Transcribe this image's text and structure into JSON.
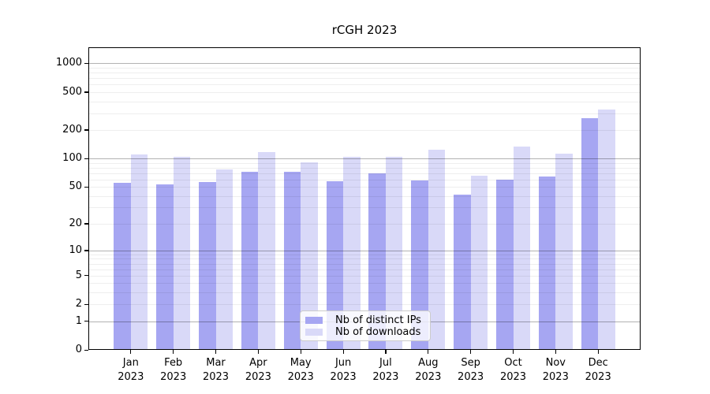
{
  "title": "rCGH 2023",
  "chart_data": {
    "type": "bar",
    "title": "rCGH 2023",
    "categories": [
      "Jan",
      "Feb",
      "Mar",
      "Apr",
      "May",
      "Jun",
      "Jul",
      "Aug",
      "Sep",
      "Oct",
      "Nov",
      "Dec"
    ],
    "x_year_label": "2023",
    "series": [
      {
        "name": "Nb of distinct IPs",
        "color": "#a6a6f2",
        "values": [
          55,
          53,
          56,
          73,
          73,
          57,
          70,
          59,
          41,
          60,
          64,
          265
        ]
      },
      {
        "name": "Nb of downloads",
        "color": "#d9d9f8",
        "values": [
          110,
          105,
          76,
          117,
          92,
          104,
          105,
          125,
          66,
          135,
          112,
          330
        ]
      }
    ],
    "y_ticks": [
      0,
      1,
      2,
      5,
      10,
      20,
      50,
      100,
      200,
      500,
      1000
    ],
    "y_major_gridlines": [
      1,
      10,
      100,
      1000
    ],
    "y_scale": "log10(value+1)",
    "ylim": [
      0,
      1475
    ],
    "grid": "on",
    "legend_position": "lower center",
    "colors": {
      "axis": "#000000",
      "major_grid": "#b3b3b3",
      "minor_grid": "#efefef",
      "background": "#ffffff"
    }
  }
}
